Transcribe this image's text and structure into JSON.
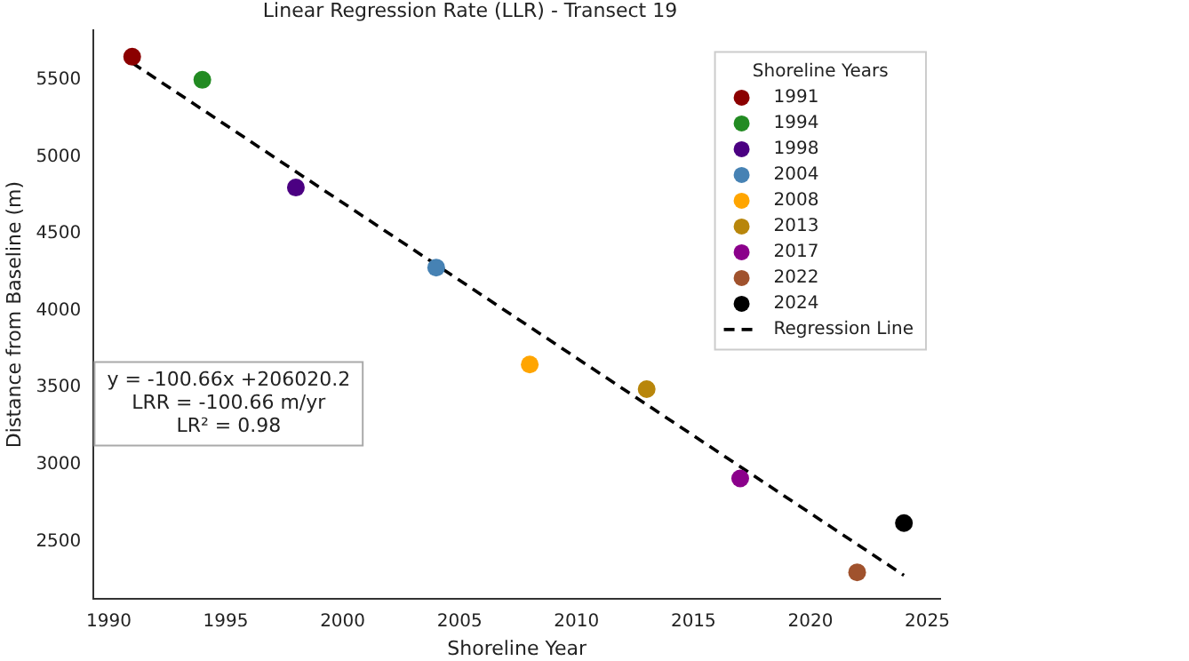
{
  "chart_data": {
    "type": "scatter",
    "title": "Linear Regression Rate (LLR) - Transect 19",
    "xlabel": "Shoreline Year",
    "ylabel": "Distance from Baseline (m)",
    "legend_title": "Shoreline Years",
    "series": [
      {
        "name": "1991",
        "color": "#8b0000",
        "x": [
          1991
        ],
        "values": [
          5650
        ]
      },
      {
        "name": "1994",
        "color": "#228b22",
        "x": [
          1994
        ],
        "values": [
          5500
        ]
      },
      {
        "name": "1998",
        "color": "#4b0082",
        "x": [
          1998
        ],
        "values": [
          4800
        ]
      },
      {
        "name": "2004",
        "color": "#4682b4",
        "x": [
          2004
        ],
        "values": [
          4280
        ]
      },
      {
        "name": "2008",
        "color": "#ffa500",
        "x": [
          2008
        ],
        "values": [
          3650
        ]
      },
      {
        "name": "2013",
        "color": "#b8860b",
        "x": [
          2013
        ],
        "values": [
          3490
        ]
      },
      {
        "name": "2017",
        "color": "#8b008b",
        "x": [
          2017
        ],
        "values": [
          2910
        ]
      },
      {
        "name": "2022",
        "color": "#a0522d",
        "x": [
          2022
        ],
        "values": [
          2300
        ]
      },
      {
        "name": "2024",
        "color": "#000000",
        "x": [
          2024
        ],
        "values": [
          2620
        ]
      },
      {
        "name": "Regression Line",
        "type": "line",
        "color": "#000000",
        "line_style": "dashed",
        "marker": "none",
        "x": [
          1991,
          2024
        ],
        "values": [
          5610,
          2280
        ]
      }
    ],
    "marker": "circle",
    "xlim": [
      1989.35,
      2025.55
    ],
    "ylim": [
      2130,
      5820
    ],
    "xticks": [
      1990,
      1995,
      2000,
      2005,
      2010,
      2015,
      2020,
      2025
    ],
    "yticks": [
      2500,
      3000,
      3500,
      4000,
      4500,
      5000,
      5500
    ],
    "grid": false,
    "legend": "top right",
    "annotations": [
      "y = -100.66x +206020.2",
      "LRR = -100.66 m/yr",
      "LR² = 0.98"
    ]
  }
}
